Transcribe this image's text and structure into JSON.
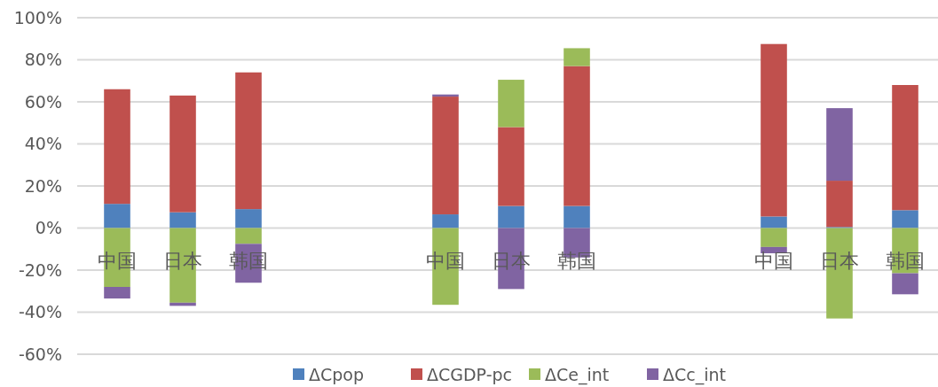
{
  "chart_data": {
    "type": "bar",
    "stacked": true,
    "categories": [
      "中国",
      "日本",
      "韩国",
      null,
      null,
      "中国",
      "日本",
      "韩国",
      null,
      null,
      "中国",
      "日本",
      "韩国"
    ],
    "series": [
      {
        "name": "ΔCpop",
        "color": "#4f81bd",
        "values": [
          11.5,
          7.5,
          9,
          null,
          null,
          6.5,
          10.5,
          10.5,
          null,
          null,
          5.5,
          0.5,
          8.5
        ]
      },
      {
        "name": "ΔCGDP-pc",
        "color": "#c0504d",
        "values": [
          54.5,
          55.5,
          65,
          null,
          null,
          56,
          37.5,
          66.5,
          null,
          null,
          82,
          22,
          59.5
        ]
      },
      {
        "name": "ΔCe_int",
        "color": "#9bbb59",
        "values": [
          -28,
          -35.5,
          -7.5,
          null,
          null,
          -36.5,
          22.5,
          8.5,
          null,
          null,
          -9,
          -43,
          -21.5
        ]
      },
      {
        "name": "ΔCc_int",
        "color": "#8064a2",
        "values": [
          -5.5,
          -1.5,
          -18.5,
          null,
          null,
          1,
          -29,
          -14,
          null,
          null,
          -3,
          34.5,
          -10
        ]
      }
    ],
    "ylim": [
      -60,
      100
    ],
    "yticks": [
      {
        "value": -60,
        "label": "-60%"
      },
      {
        "value": -40,
        "label": "-40%"
      },
      {
        "value": -20,
        "label": "-20%"
      },
      {
        "value": 0,
        "label": "0%"
      },
      {
        "value": 20,
        "label": "20%"
      },
      {
        "value": 40,
        "label": "40%"
      },
      {
        "value": 60,
        "label": "60%"
      },
      {
        "value": 80,
        "label": "80%"
      },
      {
        "value": 100,
        "label": "100%"
      }
    ],
    "grid": "y",
    "legend": "bottom"
  }
}
